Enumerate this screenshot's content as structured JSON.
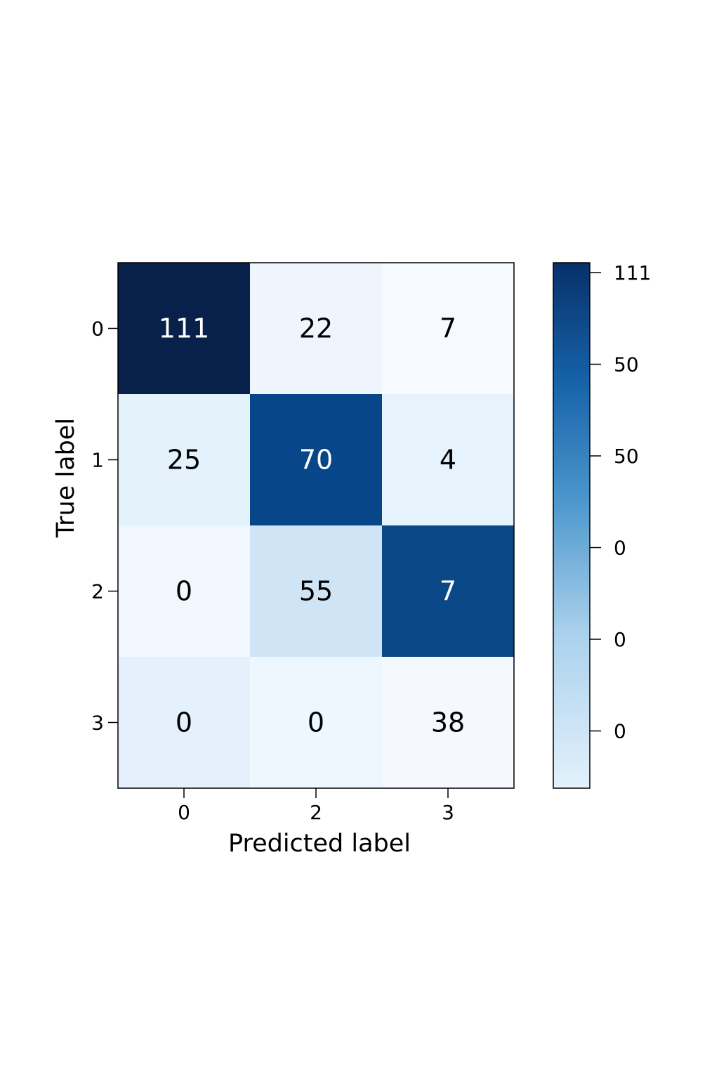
{
  "chart_data": {
    "type": "heatmap",
    "title": "",
    "xlabel": "Predicted label",
    "ylabel": "True label",
    "x_tick_labels": [
      "0",
      "2",
      "3"
    ],
    "y_tick_labels": [
      "0",
      "1",
      "2",
      "3"
    ],
    "values": [
      [
        111,
        22,
        7
      ],
      [
        25,
        70,
        4
      ],
      [
        0,
        55,
        7
      ],
      [
        0,
        0,
        38
      ]
    ],
    "cell_colors": [
      [
        "#08214a",
        "#eef5fd",
        "#f6faff"
      ],
      [
        "#e4f2fc",
        "#08468a",
        "#e6f3fc"
      ],
      [
        "#f1f7fe",
        "#cfe4f4",
        "#0a4887"
      ],
      [
        "#e4f1fc",
        "#eef6fe",
        "#f5f9ff"
      ]
    ],
    "text_colors": [
      [
        "#ffffff",
        "#000000",
        "#000000"
      ],
      [
        "#000000",
        "#ffffff",
        "#000000"
      ],
      [
        "#000000",
        "#000000",
        "#ffffff"
      ],
      [
        "#000000",
        "#000000",
        "#000000"
      ]
    ],
    "colorbar": {
      "colormap": "Blues",
      "tick_labels": [
        "111",
        "50",
        "50",
        "0",
        "0",
        "0"
      ]
    },
    "grid": false
  }
}
